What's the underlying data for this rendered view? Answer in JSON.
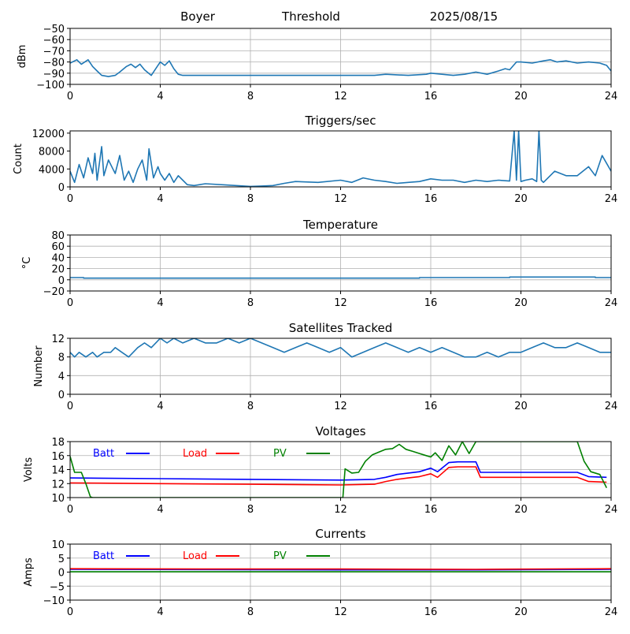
{
  "header": {
    "station": "Boyer",
    "mode": "Threshold",
    "date": "2025/08/15"
  },
  "chart_data": [
    {
      "type": "line",
      "title": "",
      "xlabel": "",
      "ylabel": "dBm",
      "xlim": [
        0,
        24
      ],
      "ylim": [
        -100,
        -50
      ],
      "xticks": [
        "0",
        "4",
        "8",
        "12",
        "16",
        "20",
        "24"
      ],
      "yticks": [
        "−100",
        "−90",
        "−80",
        "−70",
        "−60",
        "−50"
      ],
      "grid": true,
      "series": [
        {
          "color": "#1f77b4",
          "x": [
            0,
            0.3,
            0.5,
            0.8,
            1.0,
            1.2,
            1.4,
            1.7,
            2.0,
            2.2,
            2.5,
            2.7,
            2.9,
            3.1,
            3.3,
            3.6,
            3.8,
            4.0,
            4.2,
            4.4,
            4.6,
            4.8,
            5.0,
            6,
            8,
            10,
            12,
            13.5,
            14,
            15,
            15.8,
            16,
            16.5,
            17,
            17.5,
            18,
            18.5,
            19,
            19.3,
            19.5,
            19.8,
            20,
            20.5,
            21,
            21.3,
            21.6,
            22,
            22.5,
            23,
            23.5,
            23.8,
            24
          ],
          "y": [
            -81,
            -78,
            -82,
            -78,
            -84,
            -88,
            -92,
            -93,
            -92,
            -89,
            -84,
            -82,
            -85,
            -82,
            -87,
            -92,
            -86,
            -80,
            -83,
            -79,
            -86,
            -91,
            -92,
            -92,
            -92,
            -92,
            -92,
            -92,
            -91,
            -92,
            -91,
            -90,
            -91,
            -92,
            -91,
            -89,
            -91,
            -88,
            -86,
            -87,
            -80,
            -80,
            -81,
            -79,
            -78,
            -80,
            -79,
            -81,
            -80,
            -81,
            -83,
            -88
          ]
        }
      ]
    },
    {
      "type": "line",
      "title": "Triggers/sec",
      "xlabel": "",
      "ylabel": "Count",
      "xlim": [
        0,
        24
      ],
      "ylim": [
        0,
        12500
      ],
      "xticks": [
        "0",
        "4",
        "8",
        "12",
        "16",
        "20",
        "24"
      ],
      "yticks": [
        "0",
        "4000",
        "8000",
        "12000"
      ],
      "grid": false,
      "series": [
        {
          "color": "#1f77b4",
          "x": [
            0,
            0.2,
            0.4,
            0.6,
            0.8,
            1.0,
            1.1,
            1.2,
            1.4,
            1.5,
            1.7,
            1.9,
            2.0,
            2.2,
            2.4,
            2.6,
            2.8,
            3.0,
            3.2,
            3.4,
            3.5,
            3.7,
            3.9,
            4.0,
            4.2,
            4.4,
            4.6,
            4.8,
            5.0,
            5.2,
            5.5,
            6,
            7,
            8,
            8.5,
            9,
            9.5,
            10,
            11,
            12,
            12.5,
            13,
            13.5,
            14,
            14.5,
            15,
            15.5,
            16,
            16.5,
            17,
            17.5,
            18,
            18.5,
            19,
            19.5,
            19.7,
            19.8,
            19.9,
            20,
            20.2,
            20.5,
            20.7,
            20.8,
            20.9,
            21,
            21.5,
            22,
            22.5,
            23,
            23.3,
            23.6,
            24
          ],
          "y": [
            3500,
            1000,
            5000,
            2000,
            6500,
            3000,
            7500,
            1500,
            9000,
            2500,
            6000,
            4000,
            3000,
            7000,
            1500,
            3500,
            1000,
            4000,
            6000,
            1500,
            8500,
            2000,
            4500,
            3000,
            1500,
            3000,
            1000,
            2500,
            1500,
            500,
            300,
            700,
            400,
            100,
            200,
            300,
            800,
            1200,
            1000,
            1500,
            1000,
            2000,
            1500,
            1200,
            800,
            1000,
            1200,
            1800,
            1500,
            1500,
            1000,
            1500,
            1200,
            1500,
            1300,
            12500,
            1500,
            12500,
            1200,
            1500,
            1800,
            1200,
            12500,
            1500,
            1000,
            3500,
            2500,
            2500,
            4500,
            2500,
            7000,
            3500
          ]
        }
      ]
    },
    {
      "type": "line",
      "title": "Temperature",
      "xlabel": "",
      "ylabel": "°C",
      "xlim": [
        0,
        24
      ],
      "ylim": [
        -20,
        80
      ],
      "xticks": [
        "0",
        "4",
        "8",
        "12",
        "16",
        "20",
        "24"
      ],
      "yticks": [
        "−20",
        "0",
        "20",
        "40",
        "60",
        "80"
      ],
      "grid": true,
      "series": [
        {
          "color": "#1f77b4",
          "x": [
            0,
            0.6,
            0.6,
            15.5,
            15.5,
            19.5,
            19.5,
            23.3,
            23.3,
            24
          ],
          "y": [
            4,
            4,
            3,
            3,
            4,
            4,
            5,
            5,
            4,
            4
          ]
        }
      ]
    },
    {
      "type": "line",
      "title": "Satellites Tracked",
      "xlabel": "",
      "ylabel": "Number",
      "xlim": [
        0,
        24
      ],
      "ylim": [
        0,
        12
      ],
      "xticks": [
        "0",
        "4",
        "8",
        "12",
        "16",
        "20",
        "24"
      ],
      "yticks": [
        "0",
        "4",
        "8",
        "12"
      ],
      "grid": true,
      "series": [
        {
          "color": "#1f77b4",
          "x": [
            0,
            0.2,
            0.4,
            0.7,
            1.0,
            1.2,
            1.5,
            1.8,
            2.0,
            2.3,
            2.6,
            2.8,
            3.0,
            3.3,
            3.6,
            3.8,
            4.0,
            4.3,
            4.6,
            5.0,
            5.5,
            6.0,
            6.5,
            7.0,
            7.5,
            8.0,
            8.5,
            9.0,
            9.5,
            10.0,
            10.5,
            11.0,
            11.5,
            12.0,
            12.5,
            13.0,
            13.5,
            14.0,
            14.5,
            15.0,
            15.5,
            16.0,
            16.5,
            17.0,
            17.5,
            18.0,
            18.5,
            19.0,
            19.5,
            20.0,
            20.5,
            21.0,
            21.5,
            22.0,
            22.5,
            23.0,
            23.5,
            24.0
          ],
          "y": [
            9,
            8,
            9,
            8,
            9,
            8,
            9,
            9,
            10,
            9,
            8,
            9,
            10,
            11,
            10,
            11,
            12,
            11,
            12,
            11,
            12,
            11,
            11,
            12,
            11,
            12,
            11,
            10,
            9,
            10,
            11,
            10,
            9,
            10,
            8,
            9,
            10,
            11,
            10,
            9,
            10,
            9,
            10,
            9,
            8,
            8,
            9,
            8,
            9,
            9,
            10,
            11,
            10,
            10,
            11,
            10,
            9,
            9
          ]
        }
      ]
    },
    {
      "type": "line",
      "title": "Voltages",
      "xlabel": "",
      "ylabel": "Volts",
      "xlim": [
        0,
        24
      ],
      "ylim": [
        10,
        18
      ],
      "xticks": [
        "0",
        "4",
        "8",
        "12",
        "16",
        "20",
        "24"
      ],
      "yticks": [
        "10",
        "12",
        "14",
        "16",
        "18"
      ],
      "grid": true,
      "legend": [
        "Batt",
        "Load",
        "PV"
      ],
      "series": [
        {
          "name": "Batt",
          "color": "#0000ff",
          "x": [
            0,
            4,
            8,
            12,
            13.5,
            14,
            14.5,
            15,
            15.5,
            16,
            16.3,
            16.8,
            17.2,
            18,
            18.2,
            22.5,
            23,
            23.8
          ],
          "y": [
            12.8,
            12.7,
            12.6,
            12.5,
            12.6,
            12.9,
            13.3,
            13.5,
            13.7,
            14.2,
            13.7,
            15.0,
            15.1,
            15.1,
            13.6,
            13.6,
            13.0,
            12.9
          ]
        },
        {
          "name": "Load",
          "color": "#ff0000",
          "x": [
            0,
            4,
            8,
            12,
            13.5,
            14,
            14.5,
            15,
            15.5,
            16,
            16.3,
            16.8,
            17.2,
            18,
            18.2,
            22.5,
            23,
            23.8
          ],
          "y": [
            12.1,
            12.0,
            11.9,
            11.8,
            11.9,
            12.3,
            12.6,
            12.8,
            13.0,
            13.4,
            12.9,
            14.3,
            14.4,
            14.4,
            12.9,
            12.9,
            12.3,
            12.2
          ]
        },
        {
          "name": "PV",
          "color": "#008000",
          "x": [
            0,
            0.2,
            0.5,
            0.7,
            0.9,
            1.0,
            1.1,
            12.1,
            12.2,
            12.5,
            12.8,
            13.1,
            13.4,
            13.7,
            14.0,
            14.3,
            14.6,
            14.9,
            15.2,
            15.5,
            15.8,
            16.0,
            16.2,
            16.5,
            16.8,
            17.1,
            17.4,
            17.7,
            18.0,
            18.2,
            22.5,
            22.8,
            23.1,
            23.5,
            23.8
          ],
          "y": [
            15.9,
            13.6,
            13.6,
            12.0,
            10.1,
            10,
            10,
            10,
            14.1,
            13.5,
            13.6,
            15.2,
            16.1,
            16.5,
            16.9,
            17.0,
            17.6,
            16.9,
            16.6,
            16.3,
            16.0,
            15.8,
            16.4,
            15.3,
            17.4,
            16.1,
            18.0,
            16.3,
            18.0,
            18.0,
            18.0,
            15.2,
            13.7,
            13.3,
            11.4
          ]
        }
      ]
    },
    {
      "type": "line",
      "title": "Currents",
      "xlabel": "",
      "ylabel": "Amps",
      "xlim": [
        0,
        24
      ],
      "ylim": [
        -10,
        10
      ],
      "xticks": [
        "0",
        "4",
        "8",
        "12",
        "16",
        "20",
        "24"
      ],
      "yticks": [
        "−10",
        "−5",
        "0",
        "5",
        "10"
      ],
      "grid": true,
      "legend": [
        "Batt",
        "Load",
        "PV"
      ],
      "series": [
        {
          "name": "Batt",
          "color": "#0000ff",
          "x": [
            0,
            6,
            12,
            18,
            24
          ],
          "y": [
            1.0,
            0.9,
            0.8,
            0.8,
            1.0
          ]
        },
        {
          "name": "Load",
          "color": "#ff0000",
          "x": [
            0,
            6,
            12,
            18,
            24
          ],
          "y": [
            1.2,
            1.1,
            1.1,
            1.0,
            1.2
          ]
        },
        {
          "name": "PV",
          "color": "#008000",
          "x": [
            0,
            6,
            12,
            18,
            24
          ],
          "y": [
            0.1,
            0.1,
            0.1,
            0.1,
            0.1
          ]
        }
      ]
    }
  ]
}
